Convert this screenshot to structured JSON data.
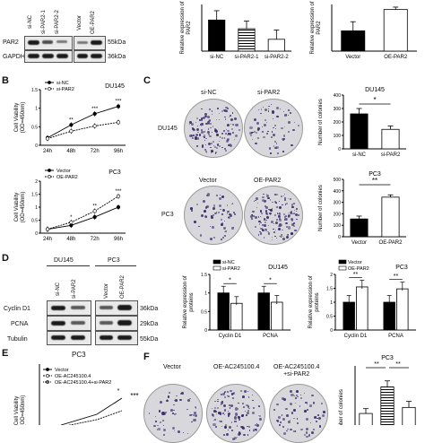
{
  "panel_labels": [
    "B",
    "C",
    "D",
    "E",
    "F"
  ],
  "panelA": {
    "lanes_left": [
      "si-NC",
      "si-PAR2-1",
      "si-PAR2-2"
    ],
    "lanes_right": [
      "Vector",
      "OE-PAR2"
    ],
    "rows": [
      "PAR2",
      "GAPDH"
    ],
    "sizes": [
      "55kDa",
      "36kDa"
    ]
  },
  "panelB": {
    "charts": [
      {
        "cell": "DU145",
        "legend": [
          "si-NC",
          "si-PAR2"
        ],
        "ylabel": "Cell Viability\n(OD=450nm)",
        "x": [
          "24h",
          "48h",
          "72h",
          "96h"
        ],
        "marks": [
          "**",
          "***",
          "***"
        ]
      },
      {
        "cell": "PC3",
        "legend": [
          "Vector",
          "OE-PAR2"
        ],
        "ylabel": "Cell Viability\n(OD=450nm)",
        "x": [
          "24h",
          "48h",
          "72h",
          "96h"
        ],
        "marks": [
          "*",
          "**",
          "***"
        ]
      }
    ]
  },
  "panelC": {
    "du145": {
      "label": "DU145",
      "left": "si-NC",
      "right": "si-PAR2"
    },
    "pc3": {
      "label": "PC3",
      "left": "Vector",
      "right": "OE-PAR2"
    }
  },
  "panelD": {
    "blot_groups": [
      "DU145",
      "PC3"
    ],
    "lanes": [
      "si-NC",
      "si-PAR2",
      "Vector",
      "OE-PAR2"
    ],
    "rows": [
      "Cyclin D1",
      "PCNA",
      "Tubulin"
    ],
    "sizes": [
      "36kDa",
      "29kDa",
      "55kDa"
    ]
  },
  "panelE": {
    "title": "PC3",
    "ylabel": "Cell Viability\n(OD=450nm)",
    "legend": [
      "Vector",
      "OE-AC245100.4",
      "OE-AC245100.4+si-PAR2"
    ],
    "marks": [
      "*",
      "***"
    ]
  },
  "panelF": {
    "dishes": [
      "Vector",
      "OE-AC245100.4",
      "OE-AC245100.4\n+si-PAR2"
    ],
    "title": "PC3",
    "ylabel": "Number of colonies",
    "marks": [
      "**",
      "**"
    ]
  },
  "chart_data": [
    {
      "type": "bar",
      "ylabel": "Relative expression of\nPAR2",
      "categories": [
        "si-NC",
        "si-PAR2-1",
        "si-PAR2-2"
      ],
      "values": [
        1.0,
        0.72,
        0.38
      ],
      "errors": [
        0.3,
        0.25,
        0.3
      ]
    },
    {
      "type": "bar",
      "ylabel": "Relative expression of\nPAR2",
      "categories": [
        "Vector",
        "OE-PAR2"
      ],
      "values": [
        1.0,
        2.05
      ],
      "errors": [
        0.45,
        0.12
      ]
    },
    {
      "type": "line",
      "title": "DU145",
      "ylabel": "Cell Viability\n(OD=450nm)",
      "categories": [
        "24h",
        "48h",
        "72h",
        "96h"
      ],
      "ylim": [
        0,
        1.5
      ],
      "series": [
        {
          "name": "si-NC",
          "values": [
            0.2,
            0.55,
            0.85,
            1.05
          ]
        },
        {
          "name": "si-PAR2",
          "values": [
            0.18,
            0.38,
            0.52,
            0.62
          ]
        }
      ]
    },
    {
      "type": "line",
      "title": "PC3",
      "ylabel": "Cell Viability\n(OD=450nm)",
      "categories": [
        "24h",
        "48h",
        "72h",
        "96h"
      ],
      "ylim": [
        0,
        2.0
      ],
      "series": [
        {
          "name": "Vector",
          "values": [
            0.15,
            0.3,
            0.62,
            1.0
          ]
        },
        {
          "name": "OE-PAR2",
          "values": [
            0.15,
            0.42,
            0.85,
            1.42
          ]
        }
      ]
    },
    {
      "type": "bar",
      "title": "DU145",
      "ylabel": "Number of colonies",
      "categories": [
        "si-NC",
        "si-PAR2"
      ],
      "values": [
        260,
        145
      ],
      "errors": [
        40,
        25
      ],
      "ylim": [
        0,
        400
      ],
      "marks": [
        "*"
      ]
    },
    {
      "type": "bar",
      "title": "PC3",
      "ylabel": "Number of colonies",
      "categories": [
        "Vector",
        "OE-PAR2"
      ],
      "values": [
        155,
        345
      ],
      "errors": [
        25,
        20
      ],
      "ylim": [
        0,
        500
      ],
      "marks": [
        "**"
      ]
    },
    {
      "type": "bar",
      "title": "DU145",
      "ylabel": "Relative expression of\nproteins",
      "categories": [
        "Cyclin D1",
        "PCNA"
      ],
      "legend": [
        "si-NC",
        "si-PAR2"
      ],
      "series": [
        {
          "name": "si-NC",
          "values": [
            1.0,
            1.0
          ]
        },
        {
          "name": "si-PAR2",
          "values": [
            0.72,
            0.75
          ]
        }
      ],
      "ylim": [
        0,
        1.5
      ],
      "marks": [
        "*",
        "*"
      ]
    },
    {
      "type": "bar",
      "title": "PC3",
      "ylabel": "Relative expression of\nproteins",
      "categories": [
        "Cyclin D1",
        "PCNA"
      ],
      "legend": [
        "Vector",
        "OE-PAR2"
      ],
      "series": [
        {
          "name": "Vector",
          "values": [
            1.0,
            1.0
          ]
        },
        {
          "name": "OE-PAR2",
          "values": [
            1.55,
            1.48
          ]
        }
      ],
      "ylim": [
        0,
        2.0
      ],
      "marks": [
        "**",
        "**"
      ]
    },
    {
      "type": "bar",
      "title": "PC3",
      "ylabel": "Number of colonies",
      "categories": [
        "Vector",
        "OE-AC245100.4",
        "OE-AC245100.4+si-PAR2"
      ],
      "values": [
        100,
        210,
        125
      ],
      "errors": [
        20,
        25,
        25
      ],
      "marks": [
        "**",
        "**"
      ]
    }
  ]
}
